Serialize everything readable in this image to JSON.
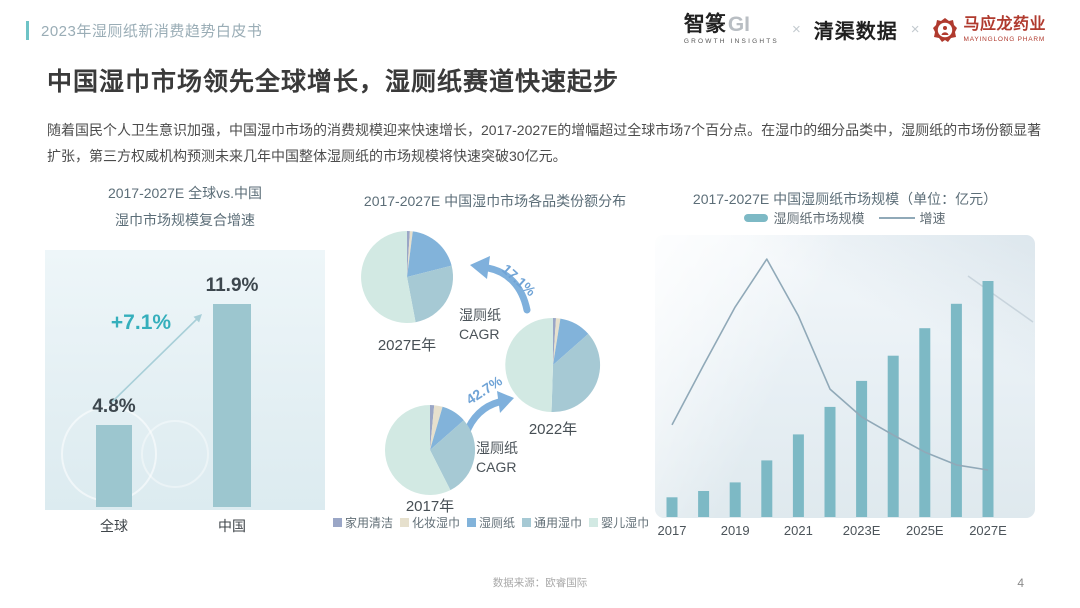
{
  "page": {
    "page_number": "4",
    "source_note": "数据来源：欧睿国际",
    "background": "#ffffff"
  },
  "header": {
    "breadcrumb": "2023年湿厕纸新消费趋势白皮书",
    "accent_color": "#6ec3c6",
    "separator": "×",
    "logos": {
      "zhizhuan": {
        "cn": "智篆",
        "gi": "GI",
        "sub": "GROWTH INSIGHTS"
      },
      "qingqu": {
        "cn": "清渠数据"
      },
      "mayinglong": {
        "cn": "马应龙药业",
        "sub": "MAYINGLONG PHARM",
        "color": "#b03a2e"
      }
    }
  },
  "title": "中国湿巾市场领先全球增长，湿厕纸赛道快速起步",
  "body_text": "随着国民个人卫生意识加强，中国湿巾市场的消费规模迎来快速增长，2017-2027E的增幅超过全球市场7个百分点。在湿巾的细分品类中，湿厕纸的市场份额显著扩张，第三方权威机构预测未来几年中国整体湿厕纸的市场规模将快速突破30亿元。",
  "chart_data": [
    {
      "type": "bar",
      "title": "2017-2027E 全球vs.中国 湿巾市场规模复合增速",
      "title_lines": [
        "2017-2027E 全球vs.中国",
        "湿巾市场规模复合增速"
      ],
      "categories": [
        "全球",
        "中国"
      ],
      "values": [
        4.8,
        11.9
      ],
      "value_labels": [
        "4.8%",
        "11.9%"
      ],
      "annotation": "+7.1%",
      "annotation_color": "#35afbc",
      "bar_color": "#9cc6cf",
      "unit": "%",
      "ylim": [
        0,
        14
      ]
    },
    {
      "type": "pie",
      "title": "2017-2027E 中国湿巾市场各品类份额分布",
      "legend": [
        "家用清洁",
        "化妆湿巾",
        "湿厕纸",
        "通用湿巾",
        "婴儿湿巾"
      ],
      "legend_colors": [
        "#9aa6c6",
        "#e6e0cd",
        "#82b3da",
        "#a6c9d4",
        "#d2e9e3"
      ],
      "pies": [
        {
          "label": "2017年",
          "values_pct_est": [
            1.5,
            3,
            9,
            29,
            57.5
          ]
        },
        {
          "label": "2022年",
          "values_pct_est": [
            1,
            1.5,
            11,
            37,
            49.5
          ]
        },
        {
          "label": "2027E年",
          "values_pct_est": [
            1,
            1,
            19,
            26,
            53
          ]
        }
      ],
      "arrows": [
        {
          "label": "42.7%",
          "caption_lines": [
            "湿厕纸",
            "CAGR"
          ],
          "from": "2017年",
          "to": "2022年"
        },
        {
          "label": "17.1%",
          "caption_lines": [
            "湿厕纸",
            "CAGR"
          ],
          "from": "2022年",
          "to": "2027E年"
        }
      ],
      "arrow_color": "#7fb0dc"
    },
    {
      "type": "bar+line",
      "title": "2017-2027E 中国湿厕纸市场规模（单位：亿元）",
      "legend": [
        {
          "label": "湿厕纸市场规模",
          "type": "bar",
          "color": "#7db9c5"
        },
        {
          "label": "增速",
          "type": "line",
          "color": "#90a9b8"
        }
      ],
      "categories": [
        "2017",
        "2018",
        "2019",
        "2020",
        "2021",
        "2022",
        "2023E",
        "2024E",
        "2025E",
        "2026E",
        "2027E"
      ],
      "x_tick_labels": [
        "2017",
        "2019",
        "2021",
        "2023E",
        "2025E",
        "2027E"
      ],
      "series": [
        {
          "name": "湿厕纸市场规模",
          "unit": "亿元",
          "values_est": [
            2.5,
            3.3,
            4.4,
            7.2,
            10.5,
            14.0,
            17.3,
            20.5,
            24.0,
            27.1,
            30.0
          ]
        },
        {
          "name": "增速",
          "unit": "relative_height_pct",
          "values_est": [
            34.5,
            56.9,
            78.7,
            96.6,
            75.3,
            47.9,
            37.5,
            30.7,
            24.3,
            19.5,
            17.6
          ]
        }
      ],
      "ylim_est": [
        0,
        33
      ],
      "legend_position": "top"
    }
  ]
}
